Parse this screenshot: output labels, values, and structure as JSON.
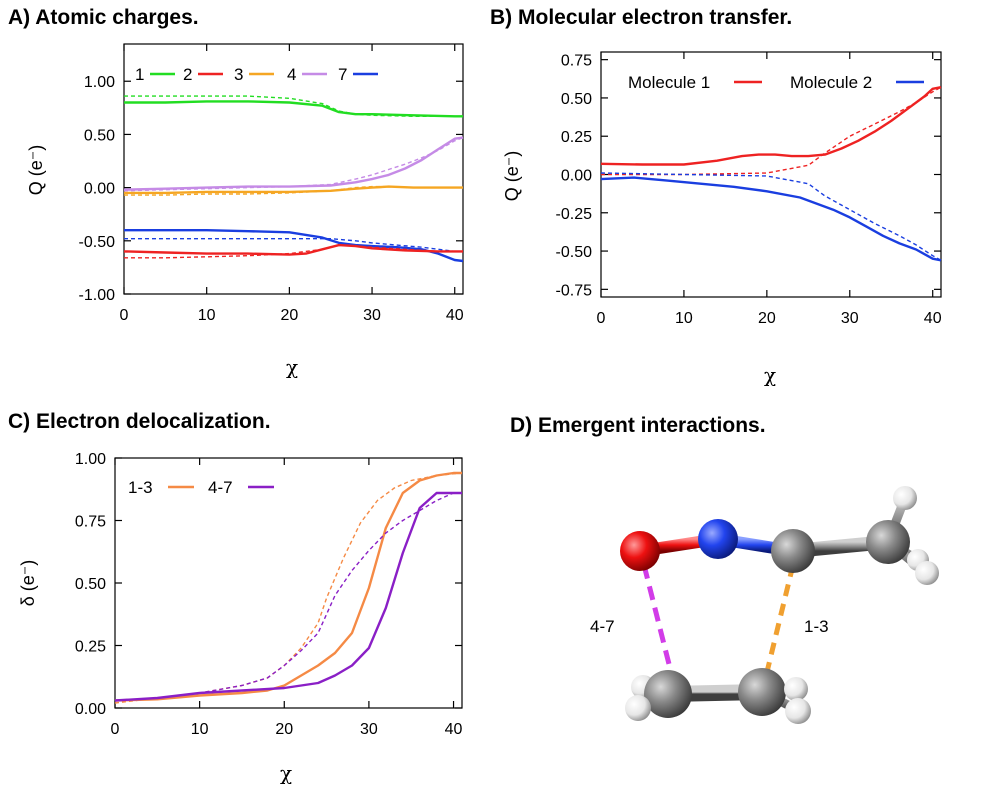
{
  "panel_titles": {
    "a": "A) Atomic charges.",
    "b": "B) Molecular electron transfer.",
    "c": "C) Electron delocalization.",
    "d": "D) Emergent interactions."
  },
  "colors": {
    "green": "#22dd22",
    "red": "#ee2222",
    "orange": "#f5a623",
    "violet": "#c58be6",
    "blue": "#1a3ee0",
    "c_orange": "#f58a45",
    "c_purple": "#8a1fc6",
    "magenta": "#d23ce8",
    "dash_orange": "#f0a030"
  },
  "chart_data": [
    {
      "id": "A",
      "type": "line",
      "title": "A) Atomic charges.",
      "xlabel": "χ",
      "ylabel": "Q (e⁻)",
      "xlim": [
        0,
        41
      ],
      "ylim": [
        -1.0,
        1.35
      ],
      "xticks": [
        0,
        10,
        20,
        30,
        40
      ],
      "yticks": [
        -1.0,
        -0.5,
        0.0,
        0.5,
        1.0
      ],
      "ytick_labels": [
        "-1.00",
        "-0.50",
        "0.00",
        "0.50",
        "1.00"
      ],
      "legend": [
        {
          "label": "1",
          "color": "green"
        },
        {
          "label": "2",
          "color": "red"
        },
        {
          "label": "3",
          "color": "orange"
        },
        {
          "label": "4",
          "color": "violet"
        },
        {
          "label": "7",
          "color": "blue"
        }
      ],
      "series": [
        {
          "name": "1",
          "color": "green",
          "style": "solid",
          "x": [
            0,
            5,
            10,
            15,
            20,
            24,
            26,
            28,
            30,
            35,
            40,
            41
          ],
          "y": [
            0.8,
            0.8,
            0.81,
            0.81,
            0.8,
            0.77,
            0.71,
            0.69,
            0.69,
            0.68,
            0.67,
            0.67
          ]
        },
        {
          "name": "1",
          "color": "green",
          "style": "dashed",
          "x": [
            0,
            5,
            10,
            15,
            20,
            24,
            26,
            28,
            30,
            35,
            40,
            41
          ],
          "y": [
            0.86,
            0.86,
            0.86,
            0.86,
            0.84,
            0.79,
            0.72,
            0.69,
            0.68,
            0.67,
            0.67,
            0.67
          ]
        },
        {
          "name": "4",
          "color": "violet",
          "style": "solid",
          "x": [
            0,
            5,
            10,
            15,
            20,
            25,
            28,
            30,
            32,
            34,
            36,
            38,
            40,
            41
          ],
          "y": [
            -0.02,
            -0.01,
            0.0,
            0.01,
            0.01,
            0.02,
            0.05,
            0.08,
            0.12,
            0.18,
            0.26,
            0.36,
            0.46,
            0.47
          ]
        },
        {
          "name": "4",
          "color": "violet",
          "style": "dashed",
          "x": [
            0,
            5,
            10,
            15,
            20,
            25,
            28,
            30,
            32,
            34,
            36,
            38,
            40,
            41
          ],
          "y": [
            -0.03,
            -0.02,
            -0.01,
            0.0,
            0.01,
            0.03,
            0.08,
            0.12,
            0.17,
            0.22,
            0.28,
            0.35,
            0.44,
            0.47
          ]
        },
        {
          "name": "3",
          "color": "orange",
          "style": "solid",
          "x": [
            0,
            5,
            10,
            15,
            20,
            25,
            28,
            30,
            32,
            35,
            38,
            41
          ],
          "y": [
            -0.05,
            -0.05,
            -0.04,
            -0.04,
            -0.04,
            -0.03,
            -0.01,
            0.0,
            0.01,
            0.0,
            0.0,
            0.0
          ]
        },
        {
          "name": "3",
          "color": "orange",
          "style": "dashed",
          "x": [
            0,
            5,
            10,
            15,
            20,
            25,
            28,
            30,
            32,
            35,
            38,
            41
          ],
          "y": [
            -0.07,
            -0.07,
            -0.06,
            -0.06,
            -0.05,
            -0.03,
            0.0,
            0.01,
            0.01,
            0.0,
            0.0,
            0.0
          ]
        },
        {
          "name": "7",
          "color": "blue",
          "style": "solid",
          "x": [
            0,
            5,
            10,
            15,
            20,
            24,
            26,
            28,
            30,
            33,
            36,
            38,
            40,
            41
          ],
          "y": [
            -0.4,
            -0.4,
            -0.4,
            -0.41,
            -0.42,
            -0.47,
            -0.52,
            -0.54,
            -0.55,
            -0.56,
            -0.58,
            -0.62,
            -0.68,
            -0.69
          ]
        },
        {
          "name": "7",
          "color": "blue",
          "style": "dashed",
          "x": [
            0,
            5,
            10,
            15,
            20,
            25,
            28,
            30,
            33,
            36,
            38,
            40,
            41
          ],
          "y": [
            -0.48,
            -0.48,
            -0.48,
            -0.48,
            -0.48,
            -0.48,
            -0.5,
            -0.52,
            -0.54,
            -0.56,
            -0.58,
            -0.6,
            -0.6
          ]
        },
        {
          "name": "2",
          "color": "red",
          "style": "solid",
          "x": [
            0,
            5,
            10,
            15,
            20,
            22,
            24,
            26,
            28,
            30,
            34,
            38,
            41
          ],
          "y": [
            -0.6,
            -0.61,
            -0.62,
            -0.62,
            -0.63,
            -0.62,
            -0.58,
            -0.54,
            -0.55,
            -0.57,
            -0.59,
            -0.6,
            -0.6
          ]
        },
        {
          "name": "2",
          "color": "red",
          "style": "dashed",
          "x": [
            0,
            5,
            10,
            15,
            20,
            24,
            26,
            28,
            30,
            34,
            38,
            41
          ],
          "y": [
            -0.66,
            -0.66,
            -0.65,
            -0.64,
            -0.62,
            -0.58,
            -0.54,
            -0.55,
            -0.56,
            -0.58,
            -0.6,
            -0.6
          ]
        }
      ]
    },
    {
      "id": "B",
      "type": "line",
      "title": "B) Molecular electron transfer.",
      "xlabel": "χ",
      "ylabel": "Q (e⁻)",
      "xlim": [
        0,
        41
      ],
      "ylim": [
        -0.8,
        0.8
      ],
      "xticks": [
        0,
        10,
        20,
        30,
        40
      ],
      "yticks": [
        -0.75,
        -0.5,
        -0.25,
        0.0,
        0.25,
        0.5,
        0.75
      ],
      "ytick_labels": [
        "-0.75",
        "-0.50",
        "-0.25",
        "0.00",
        "0.25",
        "0.50",
        "0.75"
      ],
      "legend": [
        {
          "label": "Molecule 1",
          "color": "red"
        },
        {
          "label": "Molecule 2",
          "color": "blue"
        }
      ],
      "series": [
        {
          "name": "Molecule 1",
          "color": "red",
          "style": "solid",
          "x": [
            0,
            5,
            10,
            14,
            17,
            19,
            21,
            23,
            25,
            27,
            29,
            31,
            33,
            35,
            37,
            39,
            40,
            41
          ],
          "y": [
            0.07,
            0.065,
            0.065,
            0.09,
            0.12,
            0.13,
            0.13,
            0.12,
            0.12,
            0.13,
            0.17,
            0.22,
            0.28,
            0.35,
            0.43,
            0.51,
            0.56,
            0.57
          ]
        },
        {
          "name": "Molecule 1",
          "color": "red",
          "style": "dashed",
          "x": [
            0,
            10,
            20,
            25,
            27,
            30,
            33,
            36,
            38,
            40,
            41
          ],
          "y": [
            0.0,
            0.0,
            0.01,
            0.06,
            0.14,
            0.25,
            0.33,
            0.41,
            0.47,
            0.54,
            0.57
          ]
        },
        {
          "name": "Molecule 2",
          "color": "blue",
          "style": "solid",
          "x": [
            0,
            4,
            8,
            12,
            16,
            20,
            24,
            26,
            28,
            30,
            32,
            34,
            36,
            38,
            40,
            41
          ],
          "y": [
            -0.03,
            -0.02,
            -0.04,
            -0.06,
            -0.08,
            -0.11,
            -0.15,
            -0.19,
            -0.23,
            -0.28,
            -0.34,
            -0.4,
            -0.45,
            -0.49,
            -0.55,
            -0.56
          ]
        },
        {
          "name": "Molecule 2",
          "color": "blue",
          "style": "dashed",
          "x": [
            0,
            10,
            20,
            25,
            27,
            30,
            33,
            36,
            38,
            40,
            41
          ],
          "y": [
            0.01,
            0.0,
            -0.01,
            -0.06,
            -0.14,
            -0.23,
            -0.32,
            -0.4,
            -0.46,
            -0.53,
            -0.56
          ]
        }
      ]
    },
    {
      "id": "C",
      "type": "line",
      "title": "C) Electron delocalization.",
      "xlabel": "χ",
      "ylabel": "δ (e⁻)",
      "xlim": [
        0,
        41
      ],
      "ylim": [
        0,
        1.0
      ],
      "xticks": [
        0,
        10,
        20,
        30,
        40
      ],
      "yticks": [
        0.0,
        0.25,
        0.5,
        0.75,
        1.0
      ],
      "ytick_labels": [
        "0.00",
        "0.25",
        "0.50",
        "0.75",
        "1.00"
      ],
      "legend": [
        {
          "label": "1-3",
          "color": "c_orange"
        },
        {
          "label": "4-7",
          "color": "c_purple"
        }
      ],
      "series": [
        {
          "name": "1-3",
          "color": "c_orange",
          "style": "solid",
          "x": [
            0,
            5,
            10,
            15,
            18,
            20,
            22,
            24,
            26,
            28,
            30,
            32,
            34,
            36,
            38,
            40,
            41
          ],
          "y": [
            0.03,
            0.035,
            0.05,
            0.06,
            0.07,
            0.09,
            0.13,
            0.17,
            0.22,
            0.3,
            0.48,
            0.72,
            0.86,
            0.91,
            0.93,
            0.94,
            0.94
          ]
        },
        {
          "name": "1-3",
          "color": "c_orange",
          "style": "dashed",
          "x": [
            0,
            5,
            10,
            15,
            18,
            20,
            22,
            24,
            25,
            27,
            29,
            31,
            33,
            35,
            38,
            41
          ],
          "y": [
            0.02,
            0.04,
            0.06,
            0.09,
            0.12,
            0.17,
            0.24,
            0.34,
            0.44,
            0.6,
            0.74,
            0.83,
            0.88,
            0.91,
            0.93,
            0.94
          ]
        },
        {
          "name": "4-7",
          "color": "c_purple",
          "style": "solid",
          "x": [
            0,
            5,
            10,
            15,
            20,
            22,
            24,
            26,
            28,
            30,
            32,
            34,
            36,
            38,
            40,
            41
          ],
          "y": [
            0.03,
            0.04,
            0.06,
            0.07,
            0.08,
            0.09,
            0.1,
            0.13,
            0.17,
            0.24,
            0.4,
            0.62,
            0.8,
            0.86,
            0.86,
            0.86
          ]
        },
        {
          "name": "4-7",
          "color": "c_purple",
          "style": "dashed",
          "x": [
            0,
            5,
            10,
            15,
            18,
            20,
            22,
            24,
            26,
            28,
            30,
            32,
            34,
            36,
            38,
            40,
            41
          ],
          "y": [
            0.03,
            0.04,
            0.06,
            0.09,
            0.12,
            0.17,
            0.23,
            0.3,
            0.45,
            0.55,
            0.63,
            0.7,
            0.75,
            0.79,
            0.83,
            0.86,
            0.86
          ]
        }
      ]
    }
  ],
  "molecule": {
    "label_left": "4-7",
    "label_right": "1-3"
  }
}
